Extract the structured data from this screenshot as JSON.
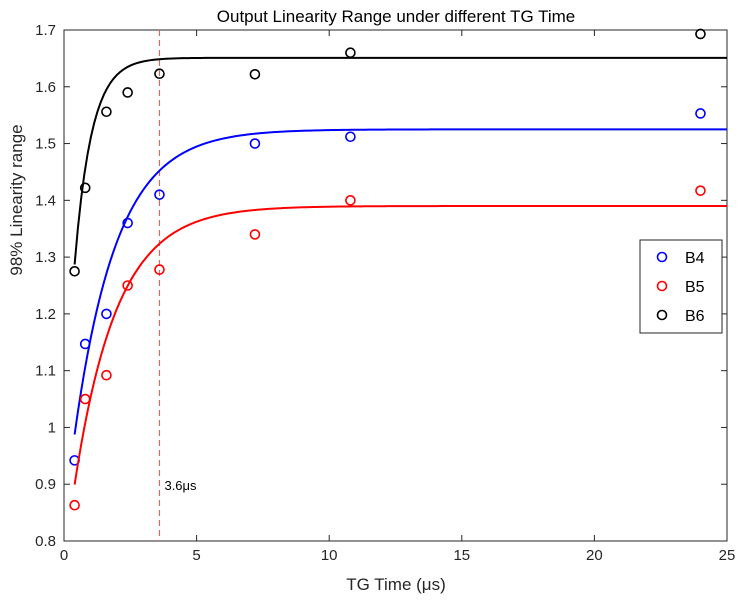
{
  "chart_data": {
    "type": "scatter",
    "title": "Output Linearity Range under different TG Time",
    "xlabel": "TG Time (μs)",
    "ylabel": "98% Linearity range",
    "xlim": [
      0,
      25
    ],
    "ylim": [
      0.8,
      1.7
    ],
    "xticks": [
      0,
      5,
      10,
      15,
      20,
      25
    ],
    "yticks": [
      0.8,
      0.9,
      1.0,
      1.1,
      1.2,
      1.3,
      1.4,
      1.5,
      1.6,
      1.7
    ],
    "xtick_labels": [
      "0",
      "5",
      "10",
      "15",
      "20",
      "25"
    ],
    "ytick_labels": [
      "0.8",
      "0.9",
      "1",
      "1.1",
      "1.2",
      "1.3",
      "1.4",
      "1.5",
      "1.6",
      "1.7"
    ],
    "grid": false,
    "legend_position": "right",
    "series": [
      {
        "name": "B4",
        "color": "#0000ff",
        "x": [
          0.4,
          0.8,
          1.6,
          2.4,
          3.6,
          7.2,
          10.8,
          24
        ],
        "y": [
          0.942,
          1.147,
          1.2,
          1.36,
          1.41,
          1.5,
          1.512,
          1.553
        ],
        "fit": {
          "asymptote": 1.525,
          "amplitude": 0.69,
          "tau": 1.6,
          "x_range": [
            0.4,
            25
          ]
        }
      },
      {
        "name": "B5",
        "color": "#ff0000",
        "x": [
          0.4,
          0.8,
          1.6,
          2.4,
          3.6,
          7.2,
          10.8,
          24
        ],
        "y": [
          0.863,
          1.05,
          1.092,
          1.25,
          1.278,
          1.34,
          1.4,
          1.417
        ],
        "fit": {
          "asymptote": 1.39,
          "amplitude": 0.63,
          "tau": 1.6,
          "x_range": [
            0.4,
            25
          ]
        }
      },
      {
        "name": "B6",
        "color": "#000000",
        "x": [
          0.4,
          0.8,
          1.6,
          2.4,
          3.6,
          7.2,
          10.8,
          24
        ],
        "y": [
          1.275,
          1.422,
          1.556,
          1.59,
          1.623,
          1.622,
          1.66,
          1.693
        ],
        "fit": {
          "asymptote": 1.651,
          "amplitude": 0.68,
          "tau": 0.64,
          "x_range": [
            0.4,
            25
          ]
        }
      }
    ],
    "annotations": [
      {
        "type": "vline",
        "x": 3.6,
        "color": "#e06666",
        "style": "dashed"
      },
      {
        "type": "text",
        "x": 3.6,
        "y": 0.89,
        "text": "3.6μs"
      }
    ]
  }
}
